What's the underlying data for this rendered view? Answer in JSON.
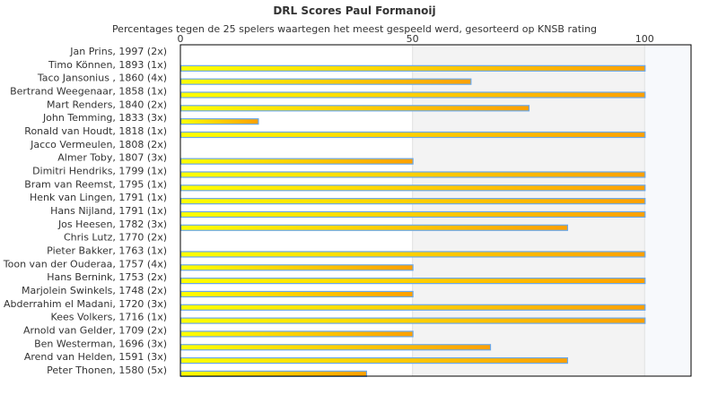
{
  "chart_data": {
    "type": "bar",
    "orientation": "horizontal",
    "title": "DRL Scores Paul Formanoij",
    "subtitle": "Percentages tegen de 25 spelers waartegen het meest gespeeld werd, gesorteerd op KNSB rating",
    "xlim": [
      0,
      110
    ],
    "xticks": [
      0,
      50,
      100
    ],
    "tick_labels": [
      "0",
      "50",
      "100"
    ],
    "categories": [
      "Jan Prins, 1997 (2x)",
      "Timo Können, 1893 (1x)",
      "Taco Jansonius , 1860 (4x)",
      "Bertrand Weegenaar, 1858 (1x)",
      "Mart Renders, 1840 (2x)",
      "John Temming, 1833 (3x)",
      "Ronald van Houdt, 1818 (1x)",
      "Jacco Vermeulen, 1808 (2x)",
      "Almer Toby, 1807 (3x)",
      "Dimitri Hendriks, 1799 (1x)",
      "Bram van Reemst, 1795 (1x)",
      "Henk van Lingen, 1791 (1x)",
      "Hans Nijland, 1791 (1x)",
      "Jos Heesen, 1782 (3x)",
      "Chris Lutz, 1770 (2x)",
      "Pieter Bakker, 1763 (1x)",
      "Toon van der Ouderaa, 1757 (4x)",
      "Hans Bernink, 1753 (2x)",
      "Marjolein Swinkels, 1748 (2x)",
      "Abderrahim el Madani, 1720 (3x)",
      "Kees Volkers, 1716 (1x)",
      "Arnold van Gelder, 1709 (2x)",
      "Ben Westerman, 1696 (3x)",
      "Arend van Helden, 1591 (3x)",
      "Peter Thonen, 1580 (5x)"
    ],
    "values": [
      0,
      100,
      62.5,
      100,
      75,
      16.7,
      100,
      0,
      50,
      100,
      100,
      100,
      100,
      83.3,
      0,
      100,
      50,
      100,
      50,
      100,
      100,
      50,
      66.7,
      83.3,
      40
    ],
    "colors": {
      "bar_start": "#ffff00",
      "bar_end": "#ffa000",
      "bar_border": "#6aa8ea",
      "band_mid": "#f3f3f3",
      "band_high": "#f7f9fc"
    },
    "grid": false
  }
}
